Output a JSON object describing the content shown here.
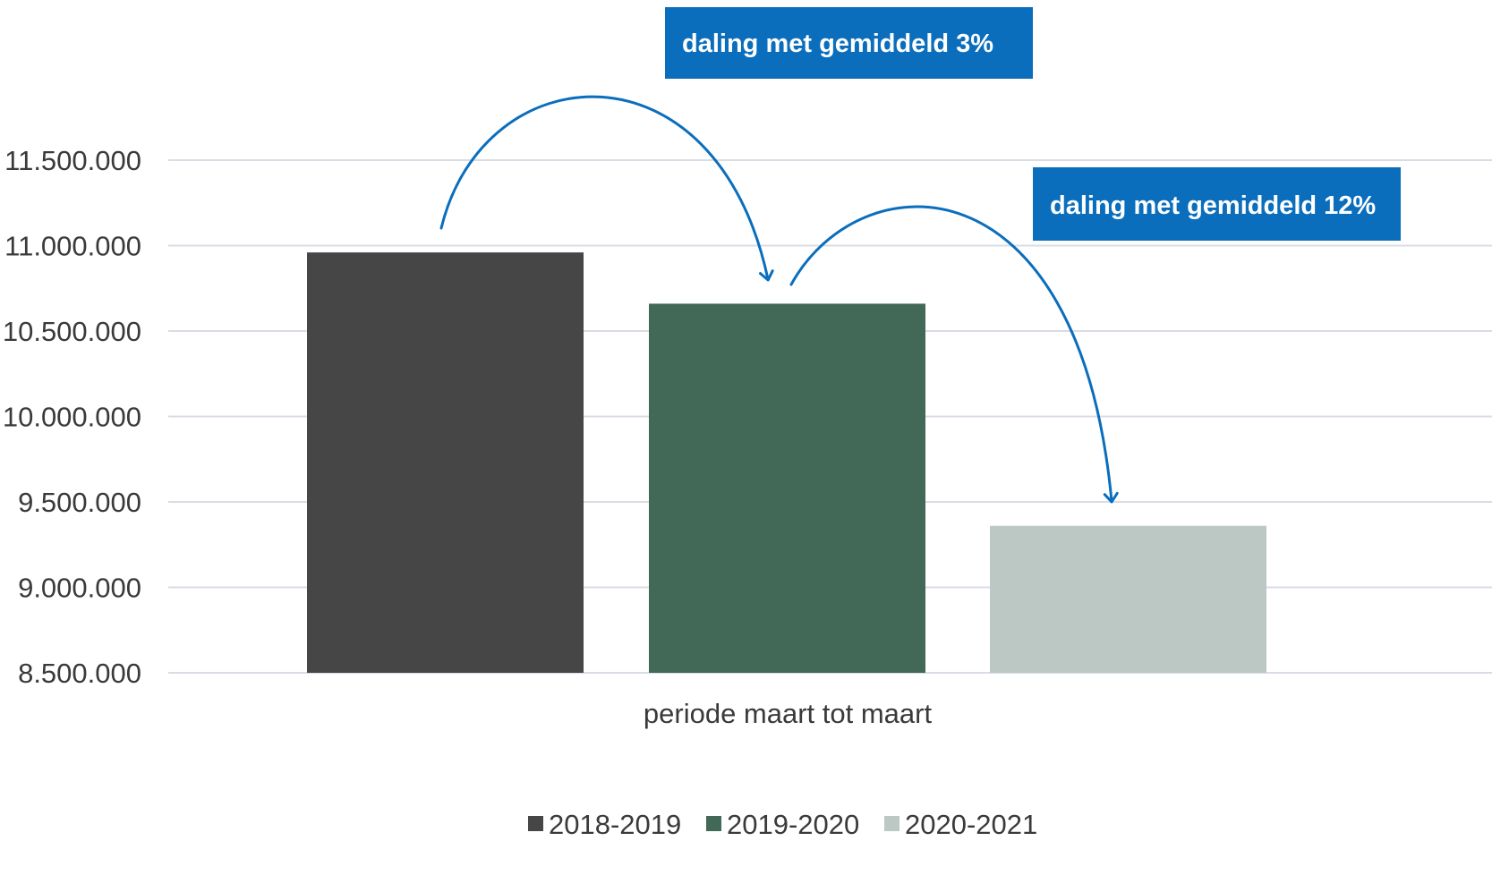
{
  "chart_data": {
    "type": "bar",
    "title": "",
    "xlabel": "periode maart tot maart",
    "ylabel": "",
    "categories": [
      "periode maart tot maart"
    ],
    "series": [
      {
        "name": "2018-2019",
        "color": "#464646",
        "values": [
          10960000
        ]
      },
      {
        "name": "2019-2020",
        "color": "#426957",
        "values": [
          10660000
        ]
      },
      {
        "name": "2020-2021",
        "color": "#bcc8c3",
        "values": [
          9360000
        ]
      }
    ],
    "ylim": [
      8500000,
      11500000
    ],
    "y_ticks": [
      {
        "value": 8500000,
        "label": "8.500.000"
      },
      {
        "value": 9000000,
        "label": "9.000.000"
      },
      {
        "value": 9500000,
        "label": "9.500.000"
      },
      {
        "value": 10000000,
        "label": "10.000.000"
      },
      {
        "value": 10500000,
        "label": "10.500.000"
      },
      {
        "value": 11000000,
        "label": "11.000.000"
      },
      {
        "value": 11500000,
        "label": "11.500.000"
      }
    ],
    "grid": true,
    "legend_position": "bottom",
    "annotations": [
      {
        "text": "daling met gemiddeld 3%",
        "from_series": "2018-2019",
        "to_series": "2019-2020"
      },
      {
        "text": "daling met gemiddeld 12%",
        "from_series": "2019-2020",
        "to_series": "2020-2021"
      }
    ],
    "annotation_color": "#0a6ebd",
    "gridline_color": "#d9dce6"
  }
}
